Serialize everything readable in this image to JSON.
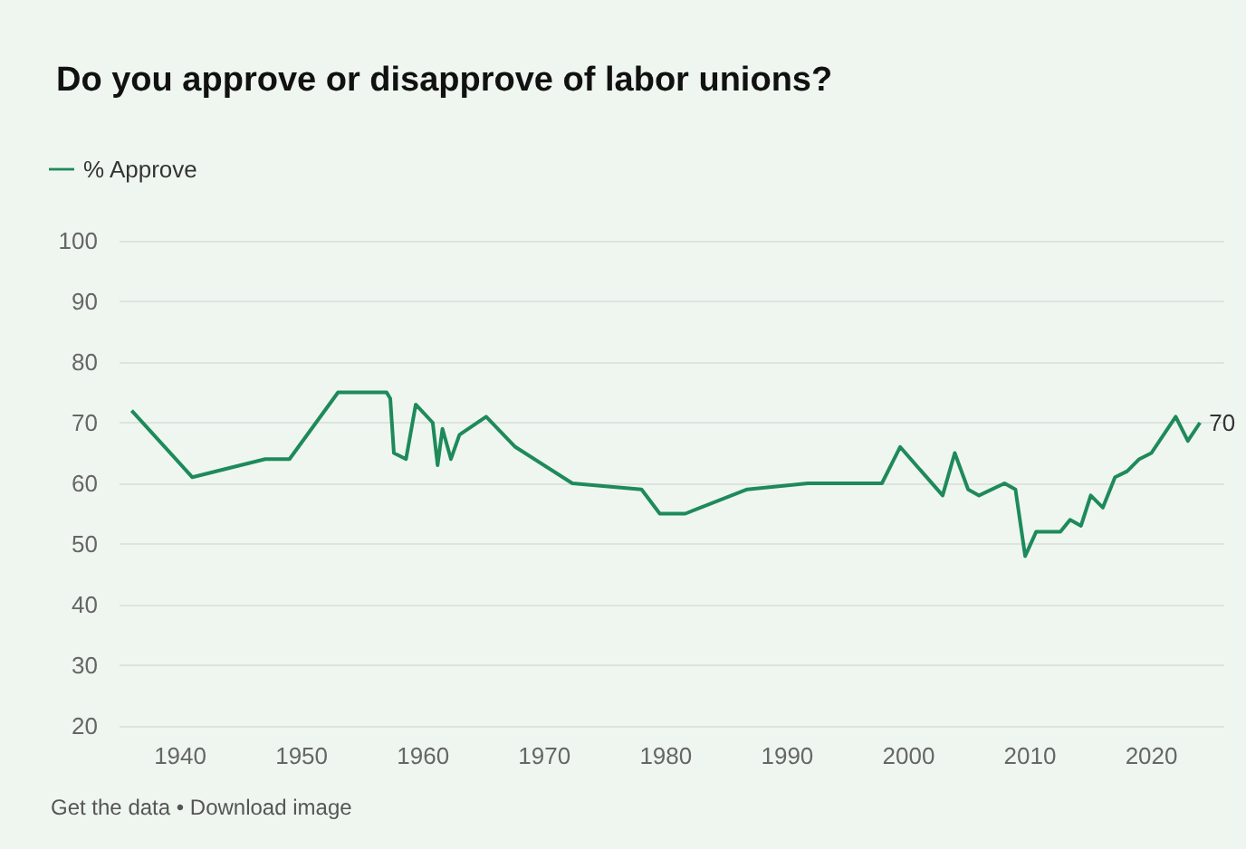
{
  "chart_data": {
    "type": "line",
    "title": "Do you approve or disapprove of labor unions?",
    "x": [
      1936,
      1941,
      1947,
      1949,
      1953,
      1957,
      1957.3,
      1957.6,
      1958.6,
      1959.4,
      1960.8,
      1961.2,
      1961.6,
      1962.3,
      1963,
      1965.2,
      1967.6,
      1972.3,
      1978,
      1979.5,
      1981.6,
      1986.7,
      1991.7,
      1997.8,
      1999.3,
      2002.8,
      2003.8,
      2004.9,
      2005.8,
      2007.9,
      2008.8,
      2009.6,
      2010.5,
      2012.5,
      2013.3,
      2014.2,
      2015,
      2016,
      2017,
      2018,
      2019,
      2020,
      2022,
      2023,
      2024
    ],
    "series": [
      {
        "name": "% Approve",
        "color": "#1e8a5a",
        "values": [
          72,
          61,
          64,
          64,
          75,
          75,
          74,
          65,
          64,
          73,
          70,
          63,
          69,
          64,
          68,
          71,
          66,
          60,
          59,
          55,
          55,
          59,
          60,
          60,
          66,
          58,
          65,
          59,
          58,
          60,
          59,
          48,
          52,
          52,
          54,
          53,
          58,
          56,
          61,
          62,
          64,
          65,
          71,
          67,
          70
        ],
        "value_labels": [
          null,
          null,
          null,
          null,
          null,
          null,
          null,
          null,
          null,
          null,
          null,
          null,
          null,
          null,
          null,
          null,
          null,
          null,
          null,
          null,
          null,
          null,
          null,
          null,
          null,
          null,
          null,
          null,
          null,
          null,
          null,
          null,
          null,
          null,
          null,
          null,
          null,
          null,
          null,
          null,
          null,
          null,
          null,
          null,
          "70"
        ]
      }
    ],
    "xlim": [
      1935,
      2026
    ],
    "xticks": [
      1940,
      1950,
      1960,
      1970,
      1980,
      1990,
      2000,
      2010,
      2020
    ],
    "ylim": [
      20,
      100
    ],
    "yticks": [
      20,
      30,
      40,
      50,
      60,
      70,
      80,
      90,
      100
    ],
    "grid": "y",
    "legend": "top left",
    "marker": "none",
    "line_style": "solid",
    "annotations": [
      "Get the data • Download image"
    ]
  }
}
